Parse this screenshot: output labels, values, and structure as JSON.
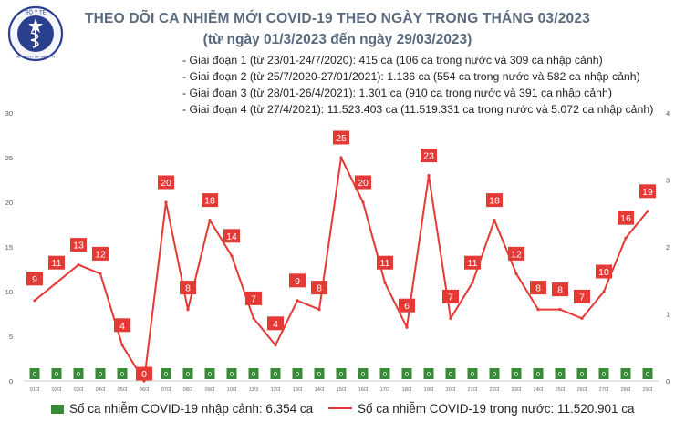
{
  "header": {
    "title": "THEO DÕI CA NHIỄM MỚI COVID-19 THEO NGÀY TRONG THÁNG 03/2023",
    "subtitle": "(từ ngày 01/3/2023 đến ngày 29/03/2023)",
    "phases": [
      "- Giai đoạn 1 (từ 23/01-24/7/2020): 415 ca (106 ca trong nước và 309 ca nhập cảnh)",
      "- Giai đoạn 2 (từ 25/7/2020-27/01/2021): 1.136 ca (554 ca trong nước và 582 ca nhập cảnh)",
      "- Giai đoạn 3 (từ 28/01-26/4/2021): 1.301 ca (910 ca trong nước và 391 ca nhập cảnh)",
      "- Giai đoạn 4 (từ 27/4/2021): 11.523.403 ca (11.519.331 ca trong nước và 5.072 ca nhập cảnh)"
    ]
  },
  "logo": {
    "top_text": "BỘ Y TẾ",
    "bottom_text": "MINISTRY OF HEALTH"
  },
  "colors": {
    "line": "#e53935",
    "label_bg": "#e53935",
    "bar": "#3a8a3a",
    "title": "#5a6a7e"
  },
  "chart_data": {
    "type": "bar+line",
    "categories": [
      "01/3",
      "02/3",
      "03/3",
      "04/3",
      "05/3",
      "06/3",
      "07/3",
      "08/3",
      "09/3",
      "10/3",
      "11/3",
      "12/3",
      "13/3",
      "14/3",
      "15/3",
      "16/3",
      "17/3",
      "18/3",
      "19/3",
      "20/3",
      "21/3",
      "22/3",
      "23/3",
      "24/3",
      "25/3",
      "26/3",
      "27/3",
      "28/3",
      "29/3"
    ],
    "series": [
      {
        "name": "Số ca nhiễm COVID-19 nhập cảnh: 6.354 ca",
        "type": "bar",
        "axis": "right",
        "values": [
          0,
          0,
          0,
          0,
          0,
          0,
          0,
          0,
          0,
          0,
          0,
          0,
          0,
          0,
          0,
          0,
          0,
          0,
          0,
          0,
          0,
          0,
          0,
          0,
          0,
          0,
          0,
          0,
          0
        ]
      },
      {
        "name": "Số ca nhiễm COVID-19 trong nước: 11.520.901 ca",
        "type": "line",
        "axis": "left",
        "values": [
          9,
          11,
          13,
          12,
          4,
          0,
          20,
          8,
          18,
          14,
          7,
          4,
          9,
          8,
          25,
          20,
          11,
          6,
          23,
          7,
          11,
          18,
          12,
          8,
          8,
          7,
          10,
          16,
          19
        ]
      }
    ],
    "y_left": {
      "range": [
        0,
        30
      ],
      "ticks": [
        0,
        5,
        10,
        15,
        20,
        25,
        30
      ]
    },
    "y_right": {
      "range": [
        0,
        4
      ],
      "ticks": [
        0,
        1,
        2,
        3,
        4
      ]
    },
    "grid": false,
    "legend_position": "bottom"
  }
}
